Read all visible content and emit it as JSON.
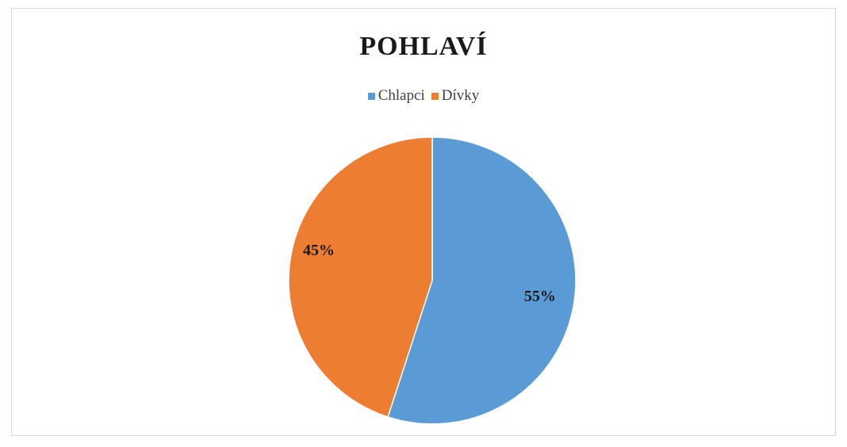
{
  "chart_data": {
    "type": "pie",
    "title": "POHLAVÍ",
    "categories": [
      "Chlapci",
      "Dívky"
    ],
    "values": [
      55,
      45
    ],
    "labels": [
      "55%",
      "45%"
    ],
    "colors": [
      "#5b9bd5",
      "#ed7d31"
    ],
    "legend_position": "top"
  }
}
